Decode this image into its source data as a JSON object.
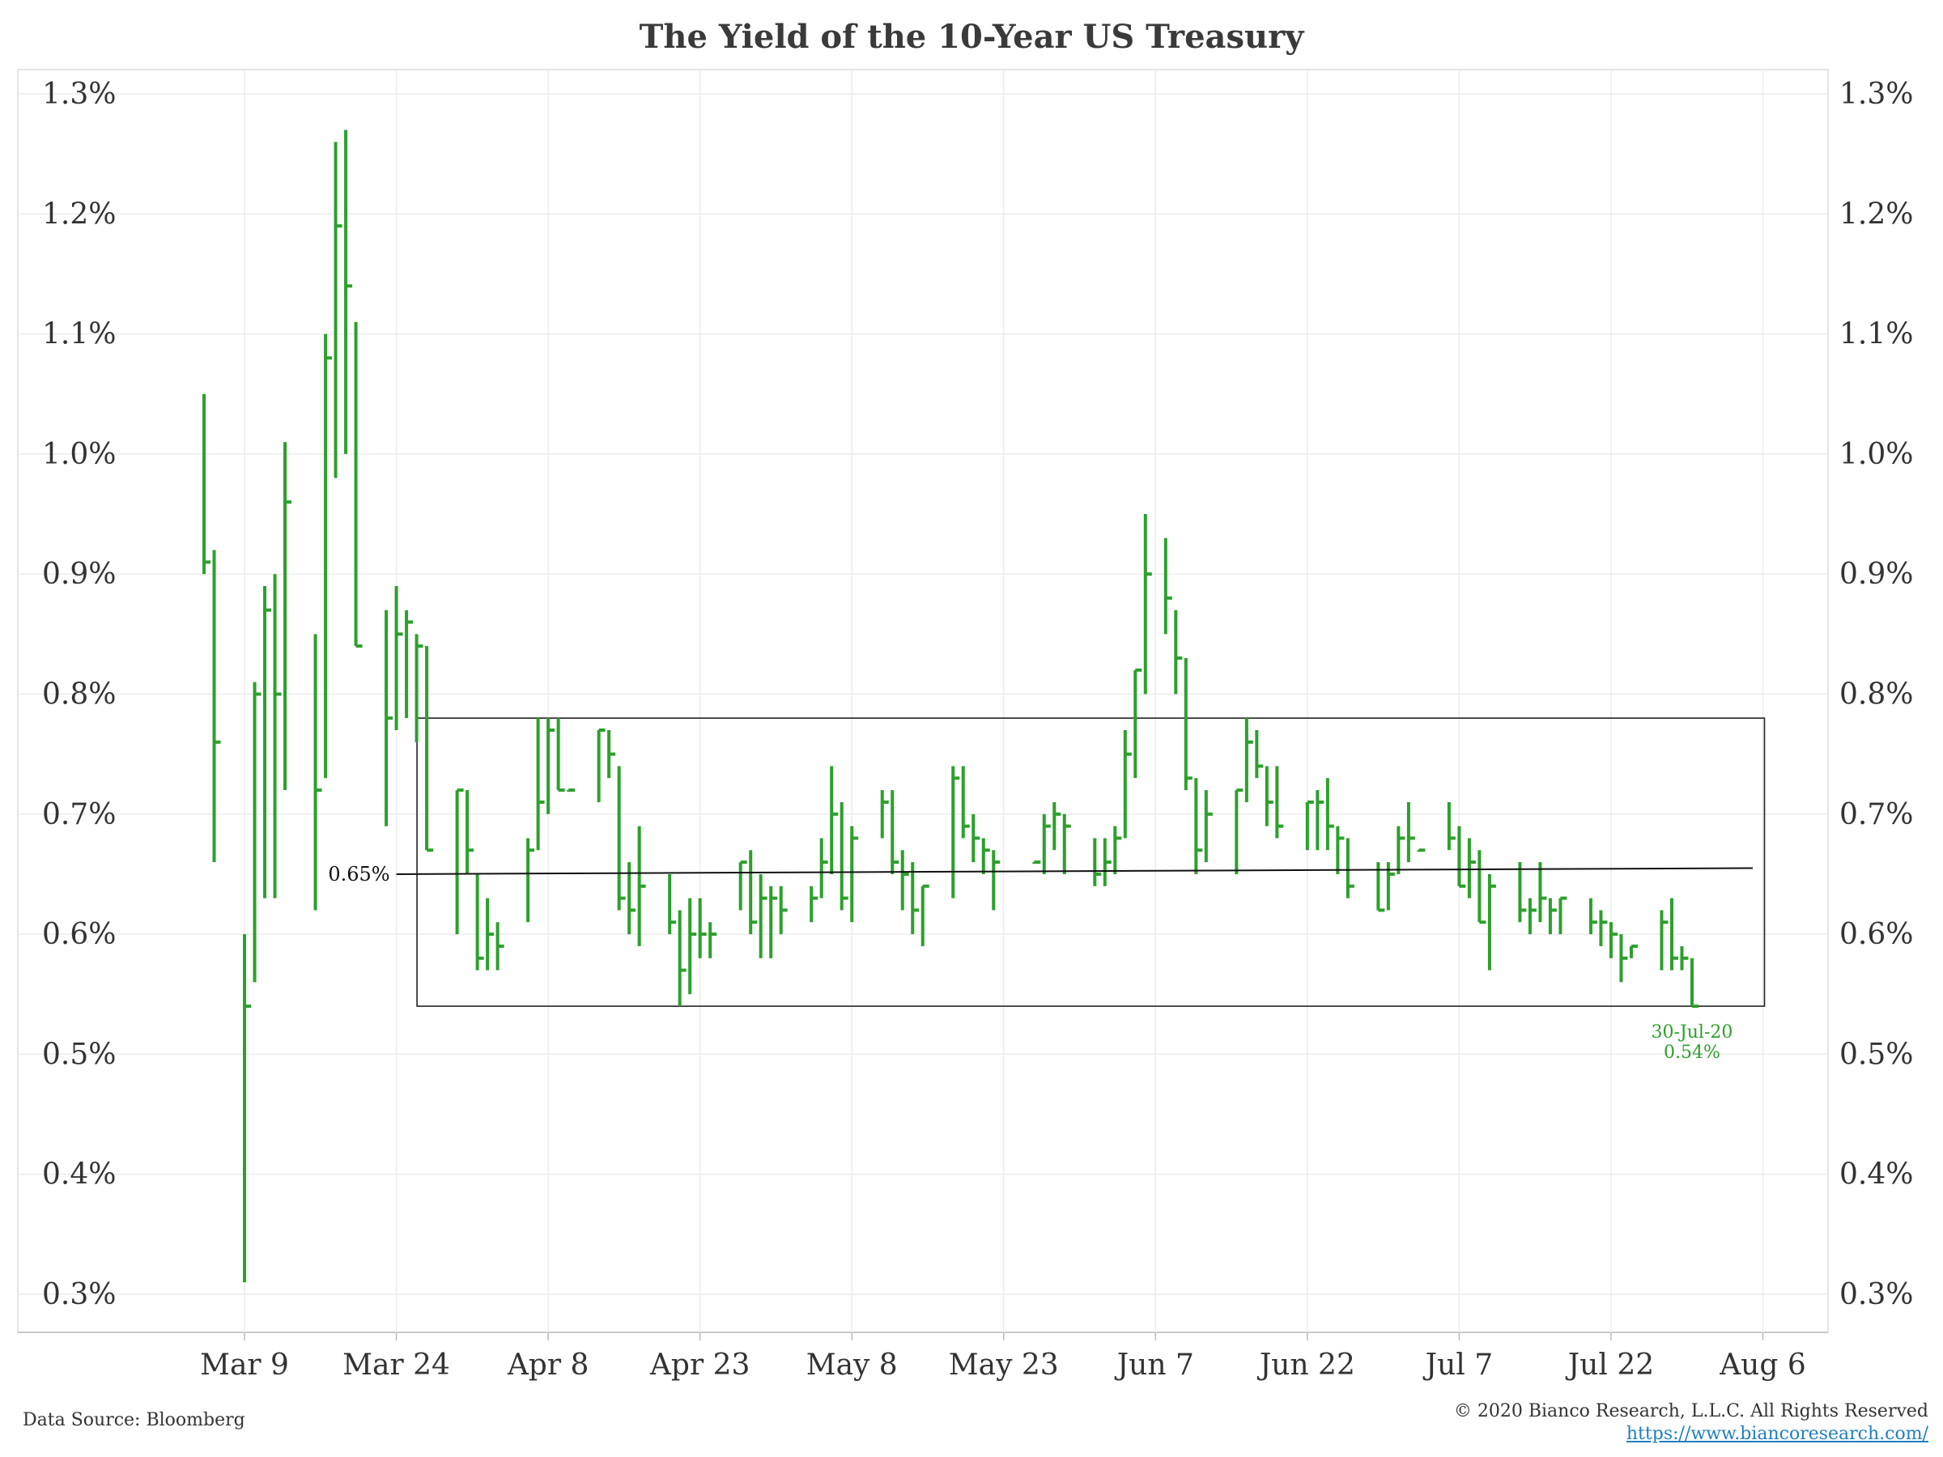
{
  "title": "The Yield of the 10-Year US Treasury",
  "footer": {
    "source": "Data Source: Bloomberg",
    "copyright": "© 2020 Bianco Research, L.L.C. All Rights Reserved",
    "url": "https://www.biancoresearch.com/"
  },
  "chart_data": {
    "type": "ohlc",
    "title": "The Yield of the 10-Year US Treasury",
    "xlabel": "",
    "ylabel": "",
    "ylim": [
      0.28,
      1.32
    ],
    "yticks": [
      "0.3%",
      "0.4%",
      "0.5%",
      "0.6%",
      "0.7%",
      "0.8%",
      "0.9%",
      "1.0%",
      "1.1%",
      "1.2%",
      "1.3%"
    ],
    "ytick_values": [
      0.3,
      0.4,
      0.5,
      0.6,
      0.7,
      0.8,
      0.9,
      1.0,
      1.1,
      1.2,
      1.3
    ],
    "xtick_labels": [
      "Mar 9",
      "Mar 24",
      "Apr 8",
      "Apr 23",
      "May 8",
      "May 23",
      "Jun 7",
      "Jun 22",
      "Jul 7",
      "Jul 22",
      "Aug 6"
    ],
    "xtick_dates": [
      "2020-03-09",
      "2020-03-24",
      "2020-04-08",
      "2020-04-23",
      "2020-05-08",
      "2020-05-23",
      "2020-06-07",
      "2020-06-22",
      "2020-07-07",
      "2020-07-22",
      "2020-08-06"
    ],
    "xlim": [
      "2020-02-26",
      "2020-08-09"
    ],
    "grid": true,
    "series_color": "#2ca02c",
    "series": [
      {
        "date": "2020-03-05",
        "high": 1.05,
        "low": 0.9,
        "close": 0.91
      },
      {
        "date": "2020-03-06",
        "high": 0.92,
        "low": 0.66,
        "close": 0.76
      },
      {
        "date": "2020-03-09",
        "high": 0.6,
        "low": 0.31,
        "close": 0.54
      },
      {
        "date": "2020-03-10",
        "high": 0.81,
        "low": 0.56,
        "close": 0.8
      },
      {
        "date": "2020-03-11",
        "high": 0.89,
        "low": 0.63,
        "close": 0.87
      },
      {
        "date": "2020-03-12",
        "high": 0.9,
        "low": 0.63,
        "close": 0.8
      },
      {
        "date": "2020-03-13",
        "high": 1.01,
        "low": 0.72,
        "close": 0.96
      },
      {
        "date": "2020-03-16",
        "high": 0.85,
        "low": 0.62,
        "close": 0.72
      },
      {
        "date": "2020-03-17",
        "high": 1.1,
        "low": 0.73,
        "close": 1.08
      },
      {
        "date": "2020-03-18",
        "high": 1.26,
        "low": 0.98,
        "close": 1.19
      },
      {
        "date": "2020-03-19",
        "high": 1.27,
        "low": 1.0,
        "close": 1.14
      },
      {
        "date": "2020-03-20",
        "high": 1.11,
        "low": 0.84,
        "close": 0.84
      },
      {
        "date": "2020-03-23",
        "high": 0.87,
        "low": 0.69,
        "close": 0.78
      },
      {
        "date": "2020-03-24",
        "high": 0.89,
        "low": 0.77,
        "close": 0.85
      },
      {
        "date": "2020-03-25",
        "high": 0.87,
        "low": 0.78,
        "close": 0.86
      },
      {
        "date": "2020-03-26",
        "high": 0.85,
        "low": 0.76,
        "close": 0.84
      },
      {
        "date": "2020-03-27",
        "high": 0.84,
        "low": 0.67,
        "close": 0.67
      },
      {
        "date": "2020-03-30",
        "high": 0.72,
        "low": 0.6,
        "close": 0.72
      },
      {
        "date": "2020-03-31",
        "high": 0.72,
        "low": 0.65,
        "close": 0.67
      },
      {
        "date": "2020-04-01",
        "high": 0.65,
        "low": 0.57,
        "close": 0.58
      },
      {
        "date": "2020-04-02",
        "high": 0.63,
        "low": 0.57,
        "close": 0.6
      },
      {
        "date": "2020-04-03",
        "high": 0.61,
        "low": 0.57,
        "close": 0.59
      },
      {
        "date": "2020-04-06",
        "high": 0.68,
        "low": 0.61,
        "close": 0.67
      },
      {
        "date": "2020-04-07",
        "high": 0.78,
        "low": 0.67,
        "close": 0.71
      },
      {
        "date": "2020-04-08",
        "high": 0.78,
        "low": 0.7,
        "close": 0.77
      },
      {
        "date": "2020-04-09",
        "high": 0.78,
        "low": 0.72,
        "close": 0.72
      },
      {
        "date": "2020-04-10",
        "high": 0.72,
        "low": 0.72,
        "close": 0.72
      },
      {
        "date": "2020-04-13",
        "high": 0.77,
        "low": 0.71,
        "close": 0.77
      },
      {
        "date": "2020-04-14",
        "high": 0.77,
        "low": 0.73,
        "close": 0.75
      },
      {
        "date": "2020-04-15",
        "high": 0.74,
        "low": 0.62,
        "close": 0.63
      },
      {
        "date": "2020-04-16",
        "high": 0.66,
        "low": 0.6,
        "close": 0.62
      },
      {
        "date": "2020-04-17",
        "high": 0.69,
        "low": 0.59,
        "close": 0.64
      },
      {
        "date": "2020-04-20",
        "high": 0.65,
        "low": 0.6,
        "close": 0.61
      },
      {
        "date": "2020-04-21",
        "high": 0.62,
        "low": 0.54,
        "close": 0.57
      },
      {
        "date": "2020-04-22",
        "high": 0.63,
        "low": 0.55,
        "close": 0.6
      },
      {
        "date": "2020-04-23",
        "high": 0.63,
        "low": 0.58,
        "close": 0.6
      },
      {
        "date": "2020-04-24",
        "high": 0.61,
        "low": 0.58,
        "close": 0.6
      },
      {
        "date": "2020-04-27",
        "high": 0.66,
        "low": 0.62,
        "close": 0.66
      },
      {
        "date": "2020-04-28",
        "high": 0.67,
        "low": 0.6,
        "close": 0.61
      },
      {
        "date": "2020-04-29",
        "high": 0.65,
        "low": 0.58,
        "close": 0.63
      },
      {
        "date": "2020-04-30",
        "high": 0.64,
        "low": 0.58,
        "close": 0.63
      },
      {
        "date": "2020-05-01",
        "high": 0.64,
        "low": 0.6,
        "close": 0.62
      },
      {
        "date": "2020-05-04",
        "high": 0.64,
        "low": 0.61,
        "close": 0.63
      },
      {
        "date": "2020-05-05",
        "high": 0.68,
        "low": 0.63,
        "close": 0.66
      },
      {
        "date": "2020-05-06",
        "high": 0.74,
        "low": 0.65,
        "close": 0.7
      },
      {
        "date": "2020-05-07",
        "high": 0.71,
        "low": 0.62,
        "close": 0.63
      },
      {
        "date": "2020-05-08",
        "high": 0.69,
        "low": 0.61,
        "close": 0.68
      },
      {
        "date": "2020-05-11",
        "high": 0.72,
        "low": 0.68,
        "close": 0.71
      },
      {
        "date": "2020-05-12",
        "high": 0.72,
        "low": 0.65,
        "close": 0.66
      },
      {
        "date": "2020-05-13",
        "high": 0.67,
        "low": 0.62,
        "close": 0.65
      },
      {
        "date": "2020-05-14",
        "high": 0.66,
        "low": 0.6,
        "close": 0.62
      },
      {
        "date": "2020-05-15",
        "high": 0.64,
        "low": 0.59,
        "close": 0.64
      },
      {
        "date": "2020-05-18",
        "high": 0.74,
        "low": 0.63,
        "close": 0.73
      },
      {
        "date": "2020-05-19",
        "high": 0.74,
        "low": 0.68,
        "close": 0.69
      },
      {
        "date": "2020-05-20",
        "high": 0.7,
        "low": 0.66,
        "close": 0.68
      },
      {
        "date": "2020-05-21",
        "high": 0.68,
        "low": 0.65,
        "close": 0.67
      },
      {
        "date": "2020-05-22",
        "high": 0.67,
        "low": 0.62,
        "close": 0.66
      },
      {
        "date": "2020-05-26",
        "high": 0.66,
        "low": 0.66,
        "close": 0.66
      },
      {
        "date": "2020-05-27",
        "high": 0.7,
        "low": 0.65,
        "close": 0.69
      },
      {
        "date": "2020-05-28",
        "high": 0.71,
        "low": 0.67,
        "close": 0.7
      },
      {
        "date": "2020-05-29",
        "high": 0.7,
        "low": 0.65,
        "close": 0.69
      },
      {
        "date": "2020-06-01",
        "high": 0.68,
        "low": 0.64,
        "close": 0.65
      },
      {
        "date": "2020-06-02",
        "high": 0.68,
        "low": 0.64,
        "close": 0.66
      },
      {
        "date": "2020-06-03",
        "high": 0.69,
        "low": 0.65,
        "close": 0.68
      },
      {
        "date": "2020-06-04",
        "high": 0.77,
        "low": 0.68,
        "close": 0.75
      },
      {
        "date": "2020-06-05",
        "high": 0.82,
        "low": 0.73,
        "close": 0.82
      },
      {
        "date": "2020-06-06",
        "high": 0.95,
        "low": 0.8,
        "close": 0.9
      },
      {
        "date": "2020-06-08",
        "high": 0.93,
        "low": 0.85,
        "close": 0.88
      },
      {
        "date": "2020-06-09",
        "high": 0.87,
        "low": 0.8,
        "close": 0.83
      },
      {
        "date": "2020-06-10",
        "high": 0.83,
        "low": 0.72,
        "close": 0.73
      },
      {
        "date": "2020-06-11",
        "high": 0.73,
        "low": 0.65,
        "close": 0.67
      },
      {
        "date": "2020-06-12",
        "high": 0.72,
        "low": 0.66,
        "close": 0.7
      },
      {
        "date": "2020-06-15",
        "high": 0.72,
        "low": 0.65,
        "close": 0.72
      },
      {
        "date": "2020-06-16",
        "high": 0.78,
        "low": 0.71,
        "close": 0.76
      },
      {
        "date": "2020-06-17",
        "high": 0.77,
        "low": 0.73,
        "close": 0.74
      },
      {
        "date": "2020-06-18",
        "high": 0.74,
        "low": 0.69,
        "close": 0.71
      },
      {
        "date": "2020-06-19",
        "high": 0.74,
        "low": 0.68,
        "close": 0.69
      },
      {
        "date": "2020-06-22",
        "high": 0.71,
        "low": 0.67,
        "close": 0.71
      },
      {
        "date": "2020-06-23",
        "high": 0.72,
        "low": 0.67,
        "close": 0.71
      },
      {
        "date": "2020-06-24",
        "high": 0.73,
        "low": 0.67,
        "close": 0.69
      },
      {
        "date": "2020-06-25",
        "high": 0.69,
        "low": 0.65,
        "close": 0.68
      },
      {
        "date": "2020-06-26",
        "high": 0.68,
        "low": 0.63,
        "close": 0.64
      },
      {
        "date": "2020-06-29",
        "high": 0.66,
        "low": 0.62,
        "close": 0.62
      },
      {
        "date": "2020-06-30",
        "high": 0.66,
        "low": 0.62,
        "close": 0.65
      },
      {
        "date": "2020-07-01",
        "high": 0.69,
        "low": 0.65,
        "close": 0.68
      },
      {
        "date": "2020-07-02",
        "high": 0.71,
        "low": 0.66,
        "close": 0.68
      },
      {
        "date": "2020-07-03",
        "high": 0.67,
        "low": 0.67,
        "close": 0.67
      },
      {
        "date": "2020-07-06",
        "high": 0.71,
        "low": 0.67,
        "close": 0.68
      },
      {
        "date": "2020-07-07",
        "high": 0.69,
        "low": 0.64,
        "close": 0.64
      },
      {
        "date": "2020-07-08",
        "high": 0.68,
        "low": 0.63,
        "close": 0.66
      },
      {
        "date": "2020-07-09",
        "high": 0.67,
        "low": 0.61,
        "close": 0.61
      },
      {
        "date": "2020-07-10",
        "high": 0.65,
        "low": 0.57,
        "close": 0.64
      },
      {
        "date": "2020-07-13",
        "high": 0.66,
        "low": 0.61,
        "close": 0.62
      },
      {
        "date": "2020-07-14",
        "high": 0.63,
        "low": 0.6,
        "close": 0.62
      },
      {
        "date": "2020-07-15",
        "high": 0.66,
        "low": 0.61,
        "close": 0.63
      },
      {
        "date": "2020-07-16",
        "high": 0.63,
        "low": 0.6,
        "close": 0.62
      },
      {
        "date": "2020-07-17",
        "high": 0.63,
        "low": 0.6,
        "close": 0.63
      },
      {
        "date": "2020-07-20",
        "high": 0.63,
        "low": 0.6,
        "close": 0.61
      },
      {
        "date": "2020-07-21",
        "high": 0.62,
        "low": 0.59,
        "close": 0.61
      },
      {
        "date": "2020-07-22",
        "high": 0.61,
        "low": 0.58,
        "close": 0.6
      },
      {
        "date": "2020-07-23",
        "high": 0.6,
        "low": 0.56,
        "close": 0.58
      },
      {
        "date": "2020-07-24",
        "high": 0.59,
        "low": 0.58,
        "close": 0.59
      },
      {
        "date": "2020-07-27",
        "high": 0.62,
        "low": 0.57,
        "close": 0.61
      },
      {
        "date": "2020-07-28",
        "high": 0.63,
        "low": 0.57,
        "close": 0.58
      },
      {
        "date": "2020-07-29",
        "high": 0.59,
        "low": 0.57,
        "close": 0.58
      },
      {
        "date": "2020-07-30",
        "high": 0.58,
        "low": 0.54,
        "close": 0.54
      }
    ],
    "box": {
      "x0": "2020-03-27",
      "x1": "2020-08-06",
      "y0": 0.54,
      "y1": 0.78
    },
    "trendline": {
      "x0": "2020-03-24",
      "y0": 0.65,
      "x1": "2020-08-05",
      "y1": 0.655,
      "label": "0.65%"
    },
    "annotation": {
      "date": "2020-07-30",
      "value": 0.54,
      "line1": "30-Jul-20",
      "line2": "0.54%"
    }
  }
}
